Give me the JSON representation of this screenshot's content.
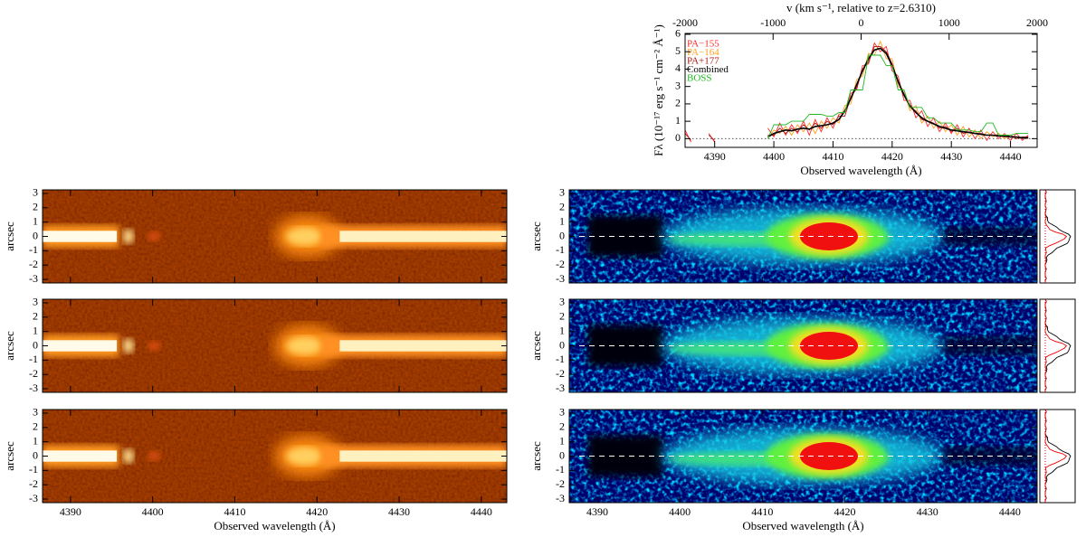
{
  "chart_data": [
    {
      "type": "line",
      "x_label": "Observed wavelength (Å)",
      "x2_label": "v (km s⁻¹, relative to z=2.6310)",
      "y_label": "Fλ (10⁻¹⁷ erg s⁻¹ cm⁻² Å⁻¹)",
      "xlim": [
        4385,
        4444.5
      ],
      "xticks": [
        4390,
        4400,
        4410,
        4420,
        4430,
        4440
      ],
      "x2lim": [
        -2000,
        2000
      ],
      "x2ticks": [
        -2000,
        -1000,
        0,
        1000,
        2000
      ],
      "ylim": [
        -0.5,
        6.05
      ],
      "yticks": [
        0,
        1,
        2,
        3,
        4,
        5,
        6
      ],
      "hline": 0,
      "x": [
        4385,
        4386,
        4387,
        4388,
        4389,
        4390,
        4391,
        4392,
        4393,
        4394,
        4395,
        4396,
        4397,
        4398,
        4399,
        4400,
        4401,
        4402,
        4403,
        4404,
        4405,
        4406,
        4407,
        4408,
        4409,
        4410,
        4411,
        4412,
        4413,
        4414,
        4415,
        4416,
        4417,
        4418,
        4419,
        4420,
        4421,
        4422,
        4423,
        4424,
        4425,
        4426,
        4427,
        4428,
        4429,
        4430,
        4431,
        4432,
        4433,
        4434,
        4435,
        4436,
        4437,
        4438,
        4439,
        4440,
        4441,
        4442,
        4443
      ],
      "series": [
        {
          "name": "PA−155",
          "color": "#ff2a2a",
          "values": [
            0.5,
            -0.2,
            null,
            null,
            0.3,
            -0.2,
            null,
            null,
            null,
            null,
            null,
            null,
            null,
            null,
            0.6,
            0.1,
            0.9,
            0.2,
            0.8,
            0.3,
            1.0,
            0.2,
            1.1,
            0.4,
            1.2,
            0.6,
            1.4,
            1.5,
            2.6,
            2.8,
            4.2,
            4.3,
            5.5,
            5.0,
            5.3,
            3.9,
            3.6,
            2.2,
            2.2,
            1.2,
            1.6,
            0.7,
            1.2,
            0.4,
            0.9,
            0.3,
            0.8,
            0.1,
            0.6,
            0.0,
            0.5,
            -0.1,
            0.4,
            0.0,
            0.3,
            -0.1,
            0.3,
            -0.1,
            0.2
          ]
        },
        {
          "name": "PA−164",
          "color": "#ffa020",
          "values": [
            null,
            null,
            null,
            null,
            null,
            null,
            null,
            null,
            null,
            null,
            null,
            null,
            null,
            null,
            0.0,
            0.5,
            0.3,
            0.7,
            0.2,
            0.8,
            0.4,
            0.9,
            0.3,
            1.0,
            0.6,
            1.2,
            0.9,
            1.9,
            2.0,
            3.4,
            3.6,
            4.9,
            4.8,
            5.6,
            4.6,
            4.6,
            3.0,
            2.8,
            1.6,
            1.9,
            0.9,
            1.3,
            0.6,
            1.0,
            0.4,
            0.8,
            0.2,
            0.7,
            0.1,
            0.5,
            0.0,
            0.4,
            0.1,
            0.3,
            0.0,
            0.2,
            0.0,
            0.1,
            0.0
          ]
        },
        {
          "name": "PA+177",
          "color": "#b01818",
          "values": [
            0.3,
            -0.1,
            null,
            null,
            0.2,
            -0.1,
            null,
            null,
            null,
            null,
            null,
            null,
            null,
            null,
            0.2,
            0.2,
            0.6,
            0.3,
            0.6,
            0.4,
            0.8,
            0.5,
            0.9,
            0.6,
            1.0,
            0.8,
            1.3,
            1.3,
            2.4,
            2.9,
            4.0,
            4.4,
            5.3,
            5.3,
            5.0,
            4.3,
            3.2,
            2.6,
            1.8,
            1.6,
            1.1,
            1.0,
            0.9,
            0.6,
            0.7,
            0.4,
            0.6,
            0.3,
            0.4,
            0.3,
            0.3,
            0.2,
            0.2,
            0.2,
            0.1,
            0.2,
            0.0,
            0.1,
            0.1
          ]
        },
        {
          "name": "Combined",
          "color": "#000000",
          "values": [
            null,
            null,
            null,
            null,
            null,
            null,
            null,
            null,
            null,
            null,
            null,
            null,
            null,
            null,
            0.1,
            0.3,
            0.4,
            0.5,
            0.45,
            0.55,
            0.6,
            0.55,
            0.7,
            0.75,
            0.8,
            0.9,
            1.1,
            1.6,
            2.3,
            3.1,
            3.9,
            4.6,
            5.1,
            5.2,
            4.9,
            4.2,
            3.3,
            2.5,
            1.9,
            1.5,
            1.2,
            1.0,
            0.85,
            0.7,
            0.6,
            0.5,
            0.45,
            0.4,
            0.35,
            0.3,
            0.25,
            0.2,
            0.2,
            0.15,
            0.15,
            0.1,
            0.1,
            0.05,
            0.05
          ]
        },
        {
          "name": "BOSS",
          "color": "#22b822",
          "values": [
            null,
            null,
            null,
            null,
            null,
            null,
            null,
            null,
            null,
            null,
            null,
            null,
            null,
            null,
            0.0,
            0.8,
            0.8,
            0.8,
            1.0,
            1.0,
            1.0,
            1.4,
            1.4,
            1.4,
            1.3,
            1.3,
            1.5,
            1.5,
            2.8,
            2.8,
            2.8,
            4.8,
            4.8,
            4.8,
            4.2,
            4.2,
            2.8,
            2.8,
            1.8,
            1.8,
            1.8,
            1.2,
            1.2,
            0.9,
            0.9,
            0.9,
            0.5,
            0.5,
            0.5,
            0.4,
            0.4,
            0.9,
            0.9,
            0.2,
            0.2,
            0.2,
            0.3,
            0.3,
            0.3
          ]
        }
      ]
    },
    {
      "type": "image",
      "colormap": "hot",
      "y_label": "arcsec",
      "ylim": [
        -3.25,
        3.25
      ],
      "yticks": [
        -3,
        -2,
        -1,
        0,
        1,
        2,
        3
      ],
      "xlim": [
        4386.6,
        4443.1
      ],
      "xticks": [
        4390,
        4400,
        4410,
        4420,
        4430,
        4440
      ],
      "xtick_labels": false
    },
    {
      "type": "image",
      "colormap": "hot",
      "y_label": "arcsec",
      "ylim": [
        -3.25,
        3.25
      ],
      "yticks": [
        -3,
        -2,
        -1,
        0,
        1,
        2,
        3
      ],
      "xlim": [
        4386.6,
        4443.1
      ],
      "xticks": [
        4390,
        4400,
        4410,
        4420,
        4430,
        4440
      ],
      "xtick_labels": false
    },
    {
      "type": "image",
      "colormap": "hot",
      "y_label": "arcsec",
      "x_label": "Observed wavelength (Å)",
      "ylim": [
        -3.25,
        3.25
      ],
      "yticks": [
        -3,
        -2,
        -1,
        0,
        1,
        2,
        3
      ],
      "xlim": [
        4386.6,
        4443.1
      ],
      "xticks": [
        4390,
        4400,
        4410,
        4420,
        4430,
        4440
      ]
    },
    {
      "type": "image",
      "colormap": "jet",
      "y_label": "arcsec",
      "hline": 0,
      "ylim": [
        -3.25,
        3.25
      ],
      "yticks": [
        -3,
        -2,
        -1,
        0,
        1,
        2,
        3
      ],
      "xlim": [
        4386.6,
        4443.3
      ],
      "xticks": [
        4390,
        4400,
        4410,
        4420,
        4430,
        4440
      ],
      "xtick_labels": false
    },
    {
      "type": "image",
      "colormap": "jet",
      "y_label": "arcsec",
      "hline": 0,
      "ylim": [
        -3.25,
        3.25
      ],
      "yticks": [
        -3,
        -2,
        -1,
        0,
        1,
        2,
        3
      ],
      "xlim": [
        4386.6,
        4443.3
      ],
      "xticks": [
        4390,
        4400,
        4410,
        4420,
        4430,
        4440
      ],
      "xtick_labels": false
    },
    {
      "type": "image",
      "colormap": "jet",
      "y_label": "arcsec",
      "x_label": "Observed wavelength (Å)",
      "hline": 0,
      "ylim": [
        -3.25,
        3.25
      ],
      "yticks": [
        -3,
        -2,
        -1,
        0,
        1,
        2,
        3
      ],
      "xlim": [
        4386.6,
        4443.3
      ],
      "xticks": [
        4390,
        4400,
        4410,
        4420,
        4430,
        4440
      ]
    }
  ]
}
